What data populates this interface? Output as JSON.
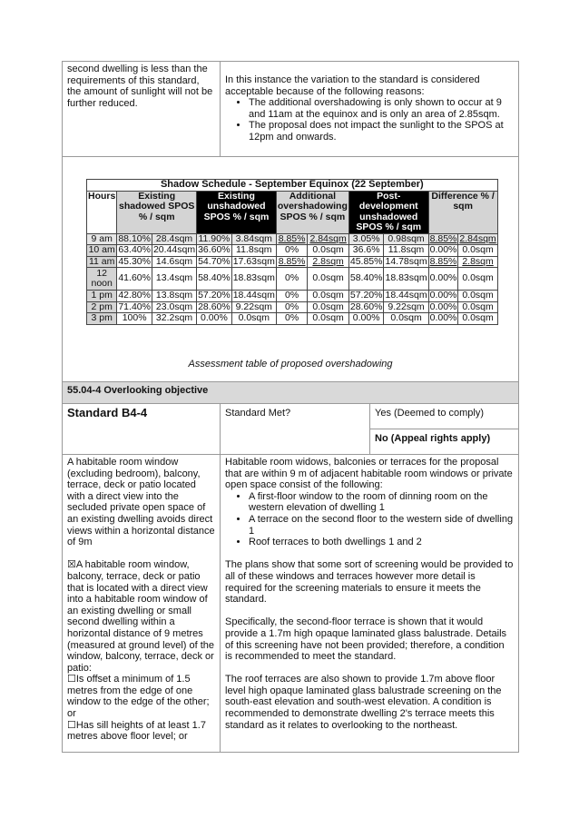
{
  "top_row": {
    "left_text": "second dwelling is less than the requirements of this standard, the amount of sunlight will not be further reduced.",
    "right_intro": "In this instance the variation to the standard is considered acceptable because of the following reasons:",
    "right_bullets": [
      "The additional overshadowing is only shown to occur at 9 and 11am at the equinox and is only an area of 2.85sqm.",
      "The proposal does not impact the sunlight to the SPOS at 12pm and onwards."
    ]
  },
  "shadow_table": {
    "title": "Shadow Schedule - September Equinox (22 September)",
    "headers": [
      "Hours",
      "Existing shadowed SPOS % / sqm",
      "Existing unshadowed SPOS % / sqm",
      "Additional overshadowing SPOS % / sqm",
      "Post-development unshadowed SPOS % / sqm",
      "Difference % / sqm"
    ],
    "header_dark": [
      false,
      false,
      true,
      false,
      true,
      false
    ],
    "rows": [
      [
        "9 am",
        "88.10%",
        "28.4sqm",
        "11.90%",
        "3.84sqm",
        "8.85%",
        "2.84sqm",
        "3.05%",
        "0.98sqm",
        "8.85%",
        "2.84sqm"
      ],
      [
        "10 am",
        "63.40%",
        "20.44sqm",
        "36.60%",
        "11.8sqm",
        "0%",
        "0.0sqm",
        "36.6%",
        "11.8sqm",
        "0.00%",
        "0.0sqm"
      ],
      [
        "11 am",
        "45.30%",
        "14.6sqm",
        "54.70%",
        "17.63sqm",
        "8.85%",
        "2.8sqm",
        "45.85%",
        "14.78sqm",
        "8.85%",
        "2.8sqm"
      ],
      [
        "12 noon",
        "41.60%",
        "13.4sqm",
        "58.40%",
        "18.83sqm",
        "0%",
        "0.0sqm",
        "58.40%",
        "18.83sqm",
        "0.00%",
        "0.0sqm"
      ],
      [
        "1 pm",
        "42.80%",
        "13.8sqm",
        "57.20%",
        "18.44sqm",
        "0%",
        "0.0sqm",
        "57.20%",
        "18.44sqm",
        "0.00%",
        "0.0sqm"
      ],
      [
        "2 pm",
        "71.40%",
        "23.0sqm",
        "28.60%",
        "9.22sqm",
        "0%",
        "0.0sqm",
        "28.60%",
        "9.22sqm",
        "0.00%",
        "0.0sqm"
      ],
      [
        "3 pm",
        "100%",
        "32.2sqm",
        "0.00%",
        "0.0sqm",
        "0%",
        "0.0sqm",
        "0.00%",
        "0.0sqm",
        "0.00%",
        "0.0sqm"
      ]
    ],
    "caption": "Assessment table of proposed overshadowing"
  },
  "section_title": "55.04-4 Overlooking objective",
  "standard": {
    "name": "Standard B4-4",
    "met_label": "Standard Met?",
    "yes": "Yes (Deemed to comply)",
    "no": "No (Appeal rights apply)"
  },
  "left_col": {
    "p1": "A habitable room window (excluding bedroom), balcony, terrace, deck or patio located with a direct view into the secluded private open space of an existing dwelling avoids direct views within a horizontal distance of 9m",
    "p2": "☒A habitable room window, balcony, terrace, deck or patio that is located with a direct view into a habitable room window of an existing dwelling or small second dwelling within a horizontal distance of 9 metres (measured at ground level) of the window, balcony, terrace, deck or patio:",
    "p3": "☐Is offset a minimum of 1.5 metres from the edge of one window to the edge of the other; or",
    "p4": "☐Has sill heights of at least 1.7 metres above floor level; or"
  },
  "right_col": {
    "intro": "Habitable room widows, balconies or terraces for the proposal that are within 9 m of adjacent habitable room windows or private open space consist of the following:",
    "bullets": [
      "A first-floor window to the room of dinning room on the western elevation of dwelling 1",
      "A terrace on the second floor to the western side of dwelling 1",
      "Roof terraces to both dwellings 1 and 2"
    ],
    "p1": "The plans show that some sort of screening would be provided to all of these windows and terraces however more detail is required for the screening materials to ensure it meets the standard.",
    "p2": "Specifically, the second-floor terrace is shown that it would provide a 1.7m high opaque laminated glass balustrade. Details of this screening have not been provided; therefore, a condition is recommended to meet the standard.",
    "p3": "The roof terraces are also shown to provide 1.7m above floor level high opaque laminated glass balustrade screening on the south-east elevation and south-west elevation. A condition is recommended to demonstrate dwelling 2's terrace meets this standard as it relates to overlooking to the northeast."
  }
}
